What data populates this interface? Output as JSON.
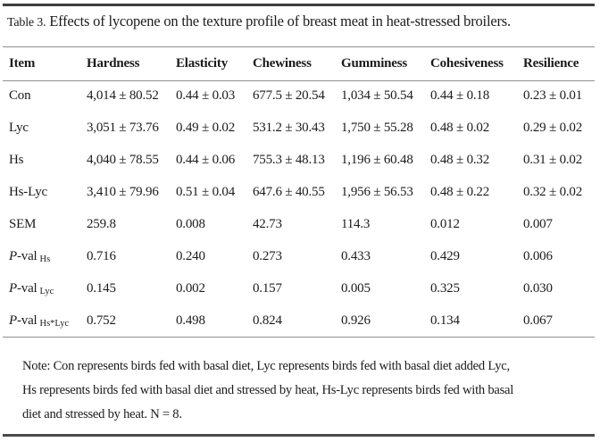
{
  "title": {
    "label": "Table 3.",
    "text": "Effects of lycopene on the texture profile of breast meat in heat-stressed broilers."
  },
  "table": {
    "columns": [
      "Item",
      "Hardness",
      "Elasticity",
      "Chewiness",
      "Gumminess",
      "Cohesiveness",
      "Resilience"
    ],
    "rows": [
      {
        "label": {
          "italic": "",
          "text": "Con",
          "sub": ""
        },
        "values": [
          "4,014 ± 80.52",
          "0.44 ± 0.03",
          "677.5 ± 20.54",
          "1,034 ± 50.54",
          "0.44 ± 0.18",
          "0.23 ± 0.01"
        ]
      },
      {
        "label": {
          "italic": "",
          "text": "Lyc",
          "sub": ""
        },
        "values": [
          "3,051 ± 73.76",
          "0.49 ± 0.02",
          "531.2 ± 30.43",
          "1,750 ± 55.28",
          "0.48 ± 0.02",
          "0.29 ± 0.02"
        ]
      },
      {
        "label": {
          "italic": "",
          "text": "Hs",
          "sub": ""
        },
        "values": [
          "4,040 ± 78.55",
          "0.44 ± 0.06",
          "755.3 ± 48.13",
          "1,196 ± 60.48",
          "0.48 ± 0.32",
          "0.31 ± 0.02"
        ]
      },
      {
        "label": {
          "italic": "",
          "text": "Hs-Lyc",
          "sub": ""
        },
        "values": [
          "3,410 ± 79.96",
          "0.51 ± 0.04",
          "647.6 ± 40.55",
          "1,956 ± 56.53",
          "0.48 ± 0.22",
          "0.32 ± 0.02"
        ]
      },
      {
        "label": {
          "italic": "",
          "text": "SEM",
          "sub": ""
        },
        "values": [
          "259.8",
          "0.008",
          "42.73",
          "114.3",
          "0.012",
          "0.007"
        ]
      },
      {
        "label": {
          "italic": "P",
          "text": "-val",
          "sub": "Hs"
        },
        "values": [
          "0.716",
          "0.240",
          "0.273",
          "0.433",
          "0.429",
          "0.006"
        ]
      },
      {
        "label": {
          "italic": "P",
          "text": "-val",
          "sub": "Lyc"
        },
        "values": [
          "0.145",
          "0.002",
          "0.157",
          "0.005",
          "0.325",
          "0.030"
        ]
      },
      {
        "label": {
          "italic": "P",
          "text": "-val",
          "sub": "Hs*Lyc"
        },
        "values": [
          "0.752",
          "0.498",
          "0.824",
          "0.926",
          "0.134",
          "0.067"
        ]
      }
    ]
  },
  "note": {
    "lines": [
      "Note: Con represents birds fed with basal diet, Lyc represents birds fed with basal diet added Lyc,",
      "Hs represents birds fed with basal diet and stressed by heat, Hs-Lyc represents birds fed with basal",
      "diet and stressed by heat. N = 8."
    ]
  },
  "colors": {
    "text": "#1b1b1b",
    "rule_thick": "#3f3f3f",
    "rule_thin": "#8f8f8f",
    "background": "#ffffff"
  }
}
